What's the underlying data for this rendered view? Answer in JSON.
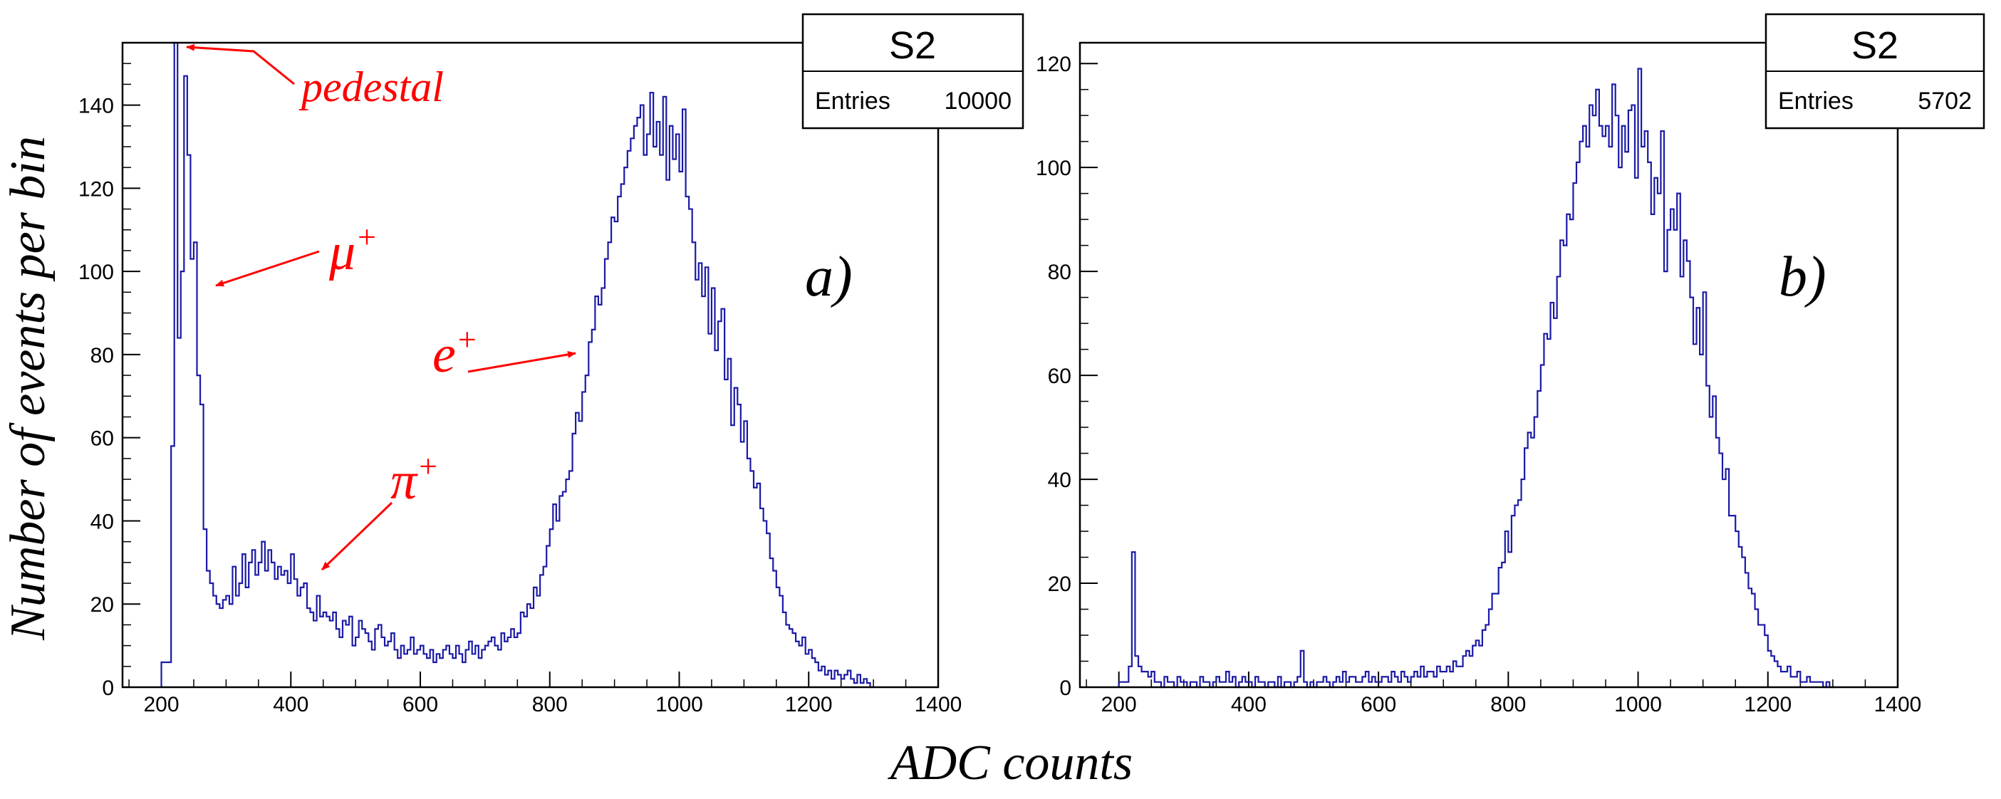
{
  "shared_xlabel": "ADC counts",
  "shared_ylabel": "Number of events per bin",
  "colors": {
    "histogram": "#1a1aa6",
    "annotation": "#ff0000",
    "axes": "#000000"
  },
  "chart_data": [
    {
      "type": "bar",
      "panel": "a)",
      "stats_box": {
        "name": "S2",
        "entries_label": "Entries",
        "entries_value": "10000"
      },
      "xlim": [
        140,
        1400
      ],
      "ylim": [
        0,
        155
      ],
      "xticks": [
        "200",
        "400",
        "600",
        "800",
        "1000",
        "1200",
        "1400"
      ],
      "yticks": [
        "0",
        "20",
        "40",
        "60",
        "80",
        "100",
        "120",
        "140"
      ],
      "annotations": [
        {
          "label": "pedestal",
          "target_x": 225,
          "target_y": 155
        },
        {
          "label": "μ",
          "superscript": "+",
          "target_x": 277,
          "target_y": 96
        },
        {
          "label": "e",
          "superscript": "+",
          "target_x": 850,
          "target_y": 80
        },
        {
          "label": "π",
          "superscript": "+",
          "target_x": 440,
          "target_y": 28
        }
      ],
      "bin_width": 5,
      "bins_x": [
        200,
        205,
        210,
        215,
        220,
        225,
        230,
        235,
        240,
        245,
        250,
        255,
        260,
        265,
        270,
        275,
        280,
        285,
        290,
        295,
        300,
        305,
        310,
        315,
        320,
        325,
        330,
        335,
        340,
        345,
        350,
        355,
        360,
        365,
        370,
        375,
        380,
        385,
        390,
        395,
        400,
        405,
        410,
        415,
        420,
        425,
        430,
        435,
        440,
        445,
        450,
        455,
        460,
        465,
        470,
        475,
        480,
        485,
        490,
        495,
        500,
        505,
        510,
        515,
        520,
        525,
        530,
        535,
        540,
        545,
        550,
        555,
        560,
        565,
        570,
        575,
        580,
        585,
        590,
        595,
        600,
        605,
        610,
        615,
        620,
        625,
        630,
        635,
        640,
        645,
        650,
        655,
        660,
        665,
        670,
        675,
        680,
        685,
        690,
        695,
        700,
        705,
        710,
        715,
        720,
        725,
        730,
        735,
        740,
        745,
        750,
        755,
        760,
        765,
        770,
        775,
        780,
        785,
        790,
        795,
        800,
        805,
        810,
        815,
        820,
        825,
        830,
        835,
        840,
        845,
        850,
        855,
        860,
        865,
        870,
        875,
        880,
        885,
        890,
        895,
        900,
        905,
        910,
        915,
        920,
        925,
        930,
        935,
        940,
        945,
        950,
        955,
        960,
        965,
        970,
        975,
        980,
        985,
        990,
        995,
        1000,
        1005,
        1010,
        1015,
        1020,
        1025,
        1030,
        1035,
        1040,
        1045,
        1050,
        1055,
        1060,
        1065,
        1070,
        1075,
        1080,
        1085,
        1090,
        1095,
        1100,
        1105,
        1110,
        1115,
        1120,
        1125,
        1130,
        1135,
        1140,
        1145,
        1150,
        1155,
        1160,
        1165,
        1170,
        1175,
        1180,
        1185,
        1190,
        1195,
        1200,
        1205,
        1210,
        1215,
        1220,
        1225,
        1230,
        1235,
        1240,
        1245,
        1250,
        1255,
        1260,
        1265,
        1270,
        1275,
        1280,
        1285,
        1290,
        1295,
        1300,
        1305
      ],
      "values": [
        6,
        6,
        6,
        58,
        155,
        84,
        100,
        147,
        128,
        103,
        107,
        75,
        68,
        38,
        28,
        25,
        22,
        20,
        19,
        21,
        22,
        20,
        29,
        22,
        25,
        32,
        24,
        30,
        33,
        27,
        30,
        35,
        28,
        33,
        30,
        26,
        29,
        27,
        28,
        25,
        32,
        26,
        22,
        24,
        25,
        19,
        18,
        16,
        22,
        17,
        18,
        17,
        16,
        18,
        14,
        12,
        16,
        15,
        17,
        10,
        12,
        16,
        14,
        13,
        11,
        9,
        14,
        15,
        12,
        10,
        11,
        13,
        9,
        7,
        10,
        8,
        9,
        12,
        8,
        9,
        10,
        8,
        7,
        9,
        6,
        8,
        7,
        9,
        10,
        8,
        7,
        10,
        8,
        6,
        9,
        11,
        8,
        10,
        7,
        9,
        10,
        11,
        12,
        10,
        9,
        13,
        11,
        12,
        14,
        12,
        13,
        18,
        17,
        20,
        19,
        24,
        22,
        27,
        29,
        34,
        38,
        44,
        40,
        46,
        47,
        50,
        52,
        61,
        66,
        64,
        71,
        75,
        83,
        86,
        94,
        92,
        96,
        103,
        107,
        113,
        112,
        118,
        121,
        125,
        129,
        132,
        135,
        137,
        140,
        128,
        133,
        143,
        130,
        136,
        128,
        142,
        122,
        135,
        127,
        133,
        124,
        139,
        118,
        115,
        107,
        98,
        102,
        94,
        101,
        85,
        96,
        81,
        88,
        91,
        74,
        79,
        63,
        72,
        68,
        59,
        64,
        55,
        52,
        48,
        49,
        43,
        40,
        37,
        31,
        28,
        24,
        22,
        18,
        15,
        14,
        13,
        11,
        10,
        12,
        8,
        9,
        7,
        6,
        4,
        5,
        3,
        4,
        2,
        4,
        3,
        2,
        3,
        4,
        2,
        1,
        3,
        1,
        2,
        1,
        0
      ]
    },
    {
      "type": "bar",
      "panel": "b)",
      "stats_box": {
        "name": "S2",
        "entries_label": "Entries",
        "entries_value": "5702"
      },
      "xlim": [
        140,
        1400
      ],
      "ylim": [
        0,
        124
      ],
      "xticks": [
        "200",
        "400",
        "600",
        "800",
        "1000",
        "1200",
        "1400"
      ],
      "yticks": [
        "0",
        "20",
        "40",
        "60",
        "80",
        "100",
        "120"
      ],
      "bin_width": 5,
      "bins_x": [
        200,
        205,
        210,
        215,
        220,
        225,
        230,
        235,
        240,
        245,
        250,
        255,
        260,
        265,
        270,
        275,
        280,
        285,
        290,
        295,
        300,
        305,
        310,
        315,
        320,
        325,
        330,
        335,
        340,
        345,
        350,
        355,
        360,
        365,
        370,
        375,
        380,
        385,
        390,
        395,
        400,
        405,
        410,
        415,
        420,
        425,
        430,
        435,
        440,
        445,
        450,
        455,
        460,
        465,
        470,
        475,
        480,
        485,
        490,
        495,
        500,
        505,
        510,
        515,
        520,
        525,
        530,
        535,
        540,
        545,
        550,
        555,
        560,
        565,
        570,
        575,
        580,
        585,
        590,
        595,
        600,
        605,
        610,
        615,
        620,
        625,
        630,
        635,
        640,
        645,
        650,
        655,
        660,
        665,
        670,
        675,
        680,
        685,
        690,
        695,
        700,
        705,
        710,
        715,
        720,
        725,
        730,
        735,
        740,
        745,
        750,
        755,
        760,
        765,
        770,
        775,
        780,
        785,
        790,
        795,
        800,
        805,
        810,
        815,
        820,
        825,
        830,
        835,
        840,
        845,
        850,
        855,
        860,
        865,
        870,
        875,
        880,
        885,
        890,
        895,
        900,
        905,
        910,
        915,
        920,
        925,
        930,
        935,
        940,
        945,
        950,
        955,
        960,
        965,
        970,
        975,
        980,
        985,
        990,
        995,
        1000,
        1005,
        1010,
        1015,
        1020,
        1025,
        1030,
        1035,
        1040,
        1045,
        1050,
        1055,
        1060,
        1065,
        1070,
        1075,
        1080,
        1085,
        1090,
        1095,
        1100,
        1105,
        1110,
        1115,
        1120,
        1125,
        1130,
        1135,
        1140,
        1145,
        1150,
        1155,
        1160,
        1165,
        1170,
        1175,
        1180,
        1185,
        1190,
        1195,
        1200,
        1205,
        1210,
        1215,
        1220,
        1225,
        1230,
        1235,
        1240,
        1245,
        1250,
        1255,
        1260,
        1265,
        1270,
        1275,
        1280,
        1285,
        1290,
        1295,
        1300,
        1305
      ],
      "values": [
        1,
        1,
        1,
        4,
        26,
        6,
        4,
        3,
        3,
        2,
        3,
        1,
        1,
        0,
        2,
        1,
        1,
        0,
        2,
        1,
        1,
        0,
        1,
        1,
        0,
        2,
        1,
        1,
        0,
        1,
        2,
        1,
        1,
        3,
        1,
        2,
        0,
        1,
        2,
        1,
        1,
        0,
        2,
        1,
        1,
        0,
        1,
        1,
        0,
        2,
        0,
        1,
        1,
        0,
        1,
        2,
        7,
        1,
        0,
        1,
        0,
        1,
        1,
        2,
        1,
        0,
        1,
        2,
        1,
        3,
        1,
        2,
        2,
        1,
        1,
        2,
        3,
        1,
        2,
        1,
        1,
        2,
        2,
        1,
        3,
        2,
        1,
        3,
        2,
        1,
        2,
        3,
        2,
        4,
        2,
        3,
        3,
        2,
        4,
        3,
        3,
        4,
        3,
        5,
        4,
        4,
        6,
        7,
        6,
        8,
        9,
        8,
        11,
        12,
        15,
        18,
        18,
        23,
        24,
        30,
        26,
        33,
        35,
        36,
        40,
        46,
        49,
        48,
        52,
        57,
        62,
        68,
        67,
        74,
        71,
        79,
        86,
        85,
        91,
        90,
        97,
        101,
        105,
        108,
        104,
        112,
        110,
        115,
        108,
        106,
        108,
        104,
        116,
        110,
        100,
        108,
        103,
        111,
        112,
        98,
        119,
        104,
        107,
        101,
        91,
        98,
        95,
        107,
        80,
        88,
        92,
        88,
        95,
        79,
        86,
        82,
        75,
        66,
        73,
        64,
        76,
        58,
        52,
        56,
        48,
        45,
        40,
        42,
        33,
        33,
        30,
        27,
        25,
        22,
        19,
        18,
        15,
        12,
        12,
        10,
        7,
        6,
        5,
        4,
        3,
        3,
        4,
        2,
        2,
        3,
        1,
        1,
        2,
        1,
        1,
        1,
        1,
        0,
        1,
        0,
        0
      ]
    }
  ]
}
